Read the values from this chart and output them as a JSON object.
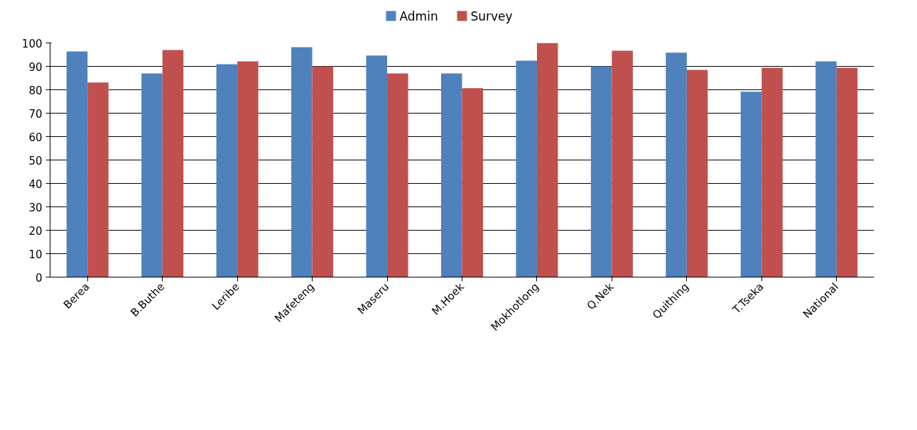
{
  "chart_data": {
    "type": "bar",
    "categories": [
      "Berea",
      "B.Buthe",
      "Leribe",
      "Mafeteng",
      "Maseru",
      "M.Hoek",
      "Mokhotlong",
      "Q.Nek",
      "Quithing",
      "T.Tseka",
      "National"
    ],
    "series": [
      {
        "name": "Admin",
        "color": "#4f81bd",
        "values": [
          96.4,
          87.0,
          90.9,
          98.2,
          94.6,
          87.0,
          92.4,
          90.0,
          95.8,
          79.2,
          92.1
        ]
      },
      {
        "name": "Survey",
        "color": "#c0504d",
        "values": [
          83.1,
          97.0,
          92.1,
          90.0,
          87.0,
          80.7,
          100,
          96.7,
          88.5,
          89.4,
          89.4
        ]
      }
    ],
    "ylim": [
      0,
      100
    ],
    "yticks": [
      0,
      10,
      20,
      30,
      40,
      50,
      60,
      70,
      80,
      90,
      100
    ],
    "grid": "y",
    "legend": "top"
  }
}
